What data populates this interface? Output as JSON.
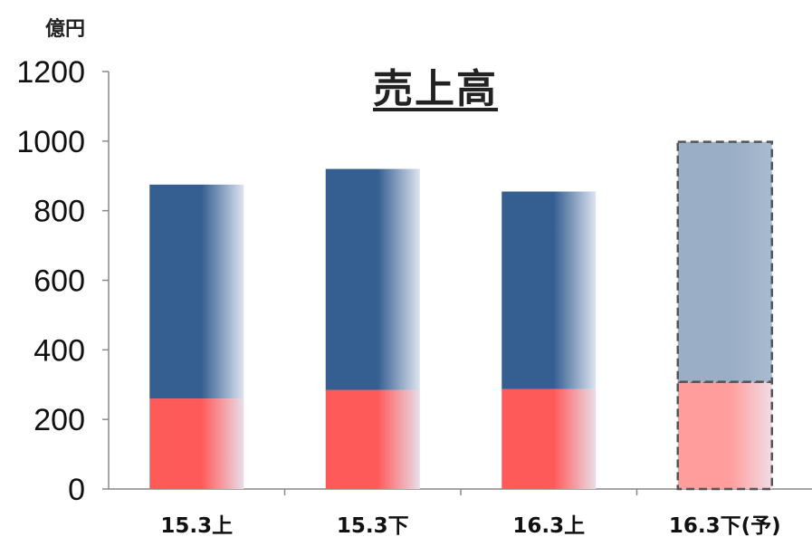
{
  "chart_data": {
    "type": "bar",
    "stacked": true,
    "title": "売上高",
    "ylabel": "億円",
    "xlabel": "",
    "categories": [
      "15.3上",
      "15.3下",
      "16.3上",
      "16.3下(予)"
    ],
    "series": [
      {
        "values": [
          260,
          285,
          287,
          308
        ],
        "color": "#ff5a5a",
        "forecast_color": "#ff9d9d"
      },
      {
        "values": [
          615,
          635,
          568,
          690
        ],
        "color": "#355e91",
        "forecast_color": "#9aaec6"
      }
    ],
    "totals": [
      875,
      920,
      855,
      998
    ],
    "forecast_index": 3,
    "ylim": [
      0,
      1200
    ],
    "yticks": [
      0,
      200,
      400,
      600,
      800,
      1000,
      1200
    ],
    "grid": false,
    "legend": "none"
  }
}
